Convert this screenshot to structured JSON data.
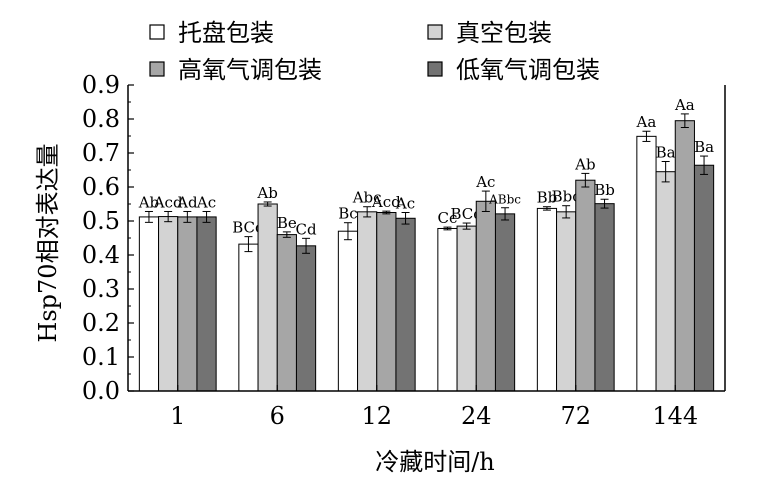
{
  "chart_data": {
    "type": "bar",
    "xlabel": "冷藏时间/h",
    "ylabel": "Hsp70相对表达量",
    "ylim": [
      0,
      0.9
    ],
    "yticks": [
      "0.0",
      "0.1",
      "0.2",
      "0.3",
      "0.4",
      "0.5",
      "0.6",
      "0.7",
      "0.8",
      "0.9"
    ],
    "categories": [
      "1",
      "6",
      "12",
      "24",
      "72",
      "144"
    ],
    "legend_position": "top",
    "series": [
      {
        "name": "托盘包装",
        "color": "#ffffff",
        "values": [
          0.512,
          0.432,
          0.47,
          0.478,
          0.537,
          0.749
        ],
        "errors": [
          0.016,
          0.022,
          0.025,
          0.004,
          0.005,
          0.015
        ],
        "labels": [
          "Ab",
          "BCd",
          "Bc",
          "Cc",
          "Bb",
          "Aa"
        ]
      },
      {
        "name": "真空包装",
        "color": "#d3d3d3",
        "values": [
          0.513,
          0.55,
          0.527,
          0.485,
          0.527,
          0.645
        ],
        "errors": [
          0.015,
          0.006,
          0.015,
          0.009,
          0.018,
          0.03
        ],
        "labels": [
          "Acd",
          "Ab",
          "Abc",
          "BCd",
          "Bbc",
          "Ba"
        ]
      },
      {
        "name": "高氧气调包装",
        "color": "#a6a6a6",
        "values": [
          0.512,
          0.46,
          0.525,
          0.558,
          0.62,
          0.795
        ],
        "errors": [
          0.016,
          0.008,
          0.004,
          0.03,
          0.02,
          0.02
        ],
        "labels": [
          "Ad",
          "Be",
          "Acd",
          "Ac",
          "Ab",
          "Aa"
        ]
      },
      {
        "name": "低氧气调包装",
        "color": "#737373",
        "values": [
          0.512,
          0.427,
          0.508,
          0.521,
          0.551,
          0.664
        ],
        "errors": [
          0.016,
          0.022,
          0.017,
          0.018,
          0.013,
          0.027
        ],
        "labels": [
          "Ac",
          "Cd",
          "Ac",
          "ABbc",
          "Bb",
          "Ba"
        ]
      }
    ]
  }
}
